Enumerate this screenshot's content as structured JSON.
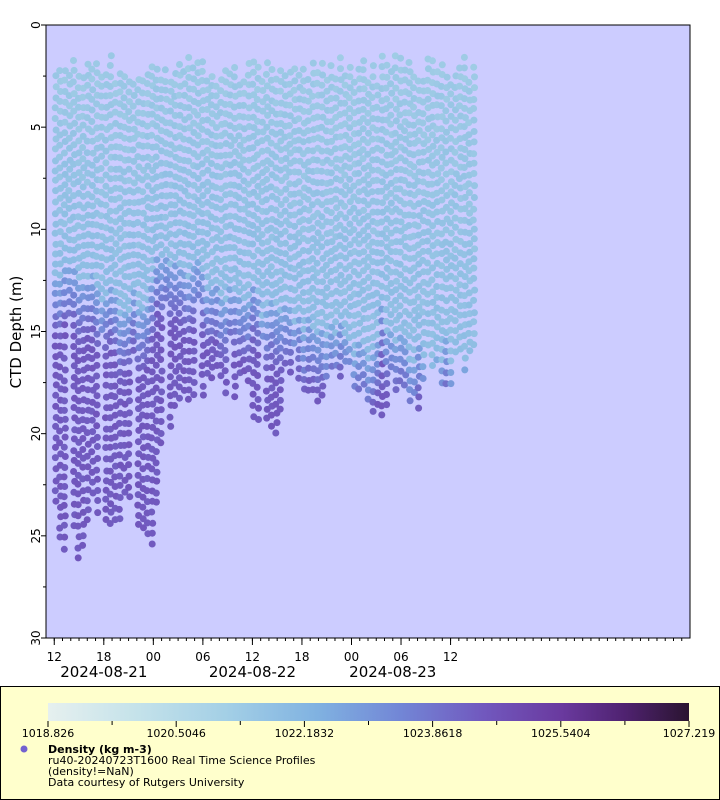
{
  "chart_data": {
    "type": "scatter",
    "ylabel": "CTD Depth (m)",
    "y_axis": {
      "range": [
        0,
        30
      ],
      "inverted": true,
      "ticks": [
        "0",
        "5",
        "10",
        "15",
        "20",
        "25",
        "30"
      ]
    },
    "x_axis": {
      "type": "time",
      "range": [
        "2024-08-20T11:00",
        "2024-08-23T17:00"
      ],
      "hour_ticks": [
        {
          "label": "12",
          "time": "2024-08-20T12:00"
        },
        {
          "label": "18",
          "time": "2024-08-20T18:00"
        },
        {
          "label": "00",
          "time": "2024-08-21T00:00"
        },
        {
          "label": "06",
          "time": "2024-08-21T06:00"
        },
        {
          "label": "12",
          "time": "2024-08-21T12:00"
        },
        {
          "label": "18",
          "time": "2024-08-21T18:00"
        },
        {
          "label": "00",
          "time": "2024-08-22T00:00"
        },
        {
          "label": "06",
          "time": "2024-08-22T06:00"
        },
        {
          "label": "12",
          "time": "2024-08-22T12:00"
        }
      ],
      "date_labels": [
        {
          "label": "2024-08-21",
          "time": "2024-08-20T18:00"
        },
        {
          "label": "2024-08-22",
          "time": "2024-08-21T12:00"
        },
        {
          "label": "2024-08-23",
          "time": "2024-08-22T05:00"
        }
      ]
    },
    "colorbar": {
      "min": 1018.826,
      "max": 1027.219,
      "labels": [
        "1018.826",
        "1020.5046",
        "1022.1832",
        "1023.8618",
        "1025.5404",
        "1027.219"
      ]
    },
    "legend": {
      "title": "Density (kg m-3)",
      "lines": [
        "ru40-20240723T1600 Real Time Science Profiles",
        "(density!=NaN)",
        "Data courtesy of Rutgers University"
      ]
    },
    "series": [
      {
        "profiles_start": "2024-08-20T12:10",
        "profiles_end": "2024-08-22T14:50",
        "profile_count": 92,
        "pycnocline_depth_m": [
          12,
          12,
          12,
          12,
          13,
          13,
          13,
          13,
          14,
          13,
          14,
          14,
          11,
          12,
          12,
          12,
          12,
          12,
          13,
          13,
          13,
          13,
          13,
          13,
          13,
          14,
          14,
          14,
          14,
          14,
          15,
          15,
          15,
          15,
          15,
          16,
          16,
          16,
          16,
          14,
          15,
          15,
          16,
          16,
          16,
          16,
          16,
          16,
          17,
          17,
          17
        ],
        "max_depth_m": [
          24,
          26.5,
          25.5,
          26,
          23,
          25,
          24,
          24.5,
          23,
          25,
          25,
          26,
          20,
          19,
          18,
          18.5,
          18,
          18,
          17.5,
          18,
          18,
          17.5,
          18.5,
          20,
          20,
          19.5,
          17,
          17,
          17.5,
          18,
          18,
          17,
          17,
          17,
          18,
          18,
          19.5,
          19,
          18,
          18,
          19,
          18,
          16,
          17,
          18,
          16.5,
          16.5,
          16
        ],
        "density_top": 1021.3,
        "density_bottom": 1024.5
      }
    ],
    "colors": {
      "plot_background": "#ccccff",
      "legend_background": "#ffffcc",
      "colormap": [
        "#e6f0ef",
        "#a9d5e0",
        "#80b8e1",
        "#6f92dd",
        "#7361c8",
        "#6c3ea8",
        "#55237a",
        "#2d1530"
      ]
    }
  }
}
